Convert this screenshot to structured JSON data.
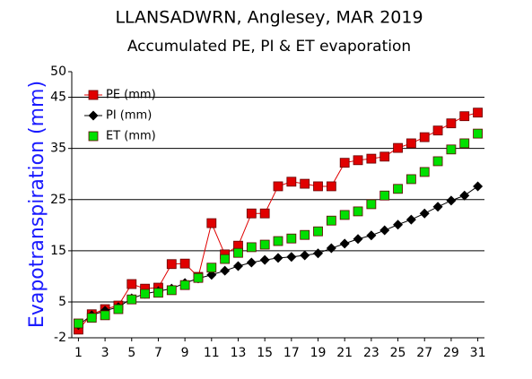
{
  "chart_data": {
    "type": "scatter",
    "title": "LLANSADWRN, Anglesey, MAR 2019",
    "subtitle": "Accumulated PE,  PI & ET evaporation",
    "y_label": "Evapotranspiration (mm)",
    "x": [
      1,
      2,
      3,
      4,
      5,
      6,
      7,
      8,
      9,
      10,
      11,
      12,
      13,
      14,
      15,
      16,
      17,
      18,
      19,
      20,
      21,
      22,
      23,
      24,
      25,
      26,
      27,
      28,
      29,
      30,
      31
    ],
    "series": [
      {
        "name": "PE (mm)",
        "color": "#e00000",
        "marker": "square",
        "line": true,
        "values": [
          -0.4,
          2.6,
          3.6,
          4.3,
          8.5,
          7.6,
          7.8,
          12.4,
          12.5,
          9.9,
          20.4,
          14.3,
          16,
          22.3,
          22.3,
          27.6,
          28.5,
          28.1,
          27.6,
          27.6,
          32.2,
          32.7,
          33,
          33.4,
          35.1,
          36,
          37.2,
          38.5,
          39.9,
          41.3,
          42
        ]
      },
      {
        "name": "PI (mm)",
        "color": "#000000",
        "marker": "diamond",
        "line": true,
        "values": [
          0.5,
          2.4,
          3.3,
          4,
          5.7,
          6.6,
          7.1,
          7.6,
          8.7,
          9.6,
          10.3,
          11.1,
          12,
          12.7,
          13.2,
          13.6,
          13.8,
          14.1,
          14.5,
          15.5,
          16.4,
          17.3,
          18,
          19,
          20.1,
          21.1,
          22.3,
          23.6,
          24.8,
          25.8,
          27.6
        ]
      },
      {
        "name": "ET (mm)",
        "color": "#00e000",
        "marker": "square",
        "line": false,
        "values": [
          0.8,
          1.9,
          2.4,
          3.6,
          5.5,
          6.6,
          6.8,
          7.3,
          8.3,
          9.7,
          11.7,
          13.4,
          14.6,
          15.7,
          16.2,
          16.9,
          17.4,
          18.1,
          18.8,
          20.9,
          22,
          22.7,
          24.1,
          25.8,
          27.1,
          29,
          30.4,
          32.5,
          34.8,
          36,
          37.9
        ]
      }
    ],
    "xlim": [
      0.5,
      31.5
    ],
    "xticks": [
      1,
      3,
      5,
      7,
      9,
      11,
      13,
      15,
      17,
      19,
      21,
      23,
      25,
      27,
      29,
      31
    ],
    "ylim": [
      -2,
      50
    ],
    "yticks": [
      -2,
      5,
      15,
      25,
      35,
      45,
      50
    ],
    "grid": true,
    "legend": "upper left",
    "y_label_color": "#1a1aff"
  }
}
